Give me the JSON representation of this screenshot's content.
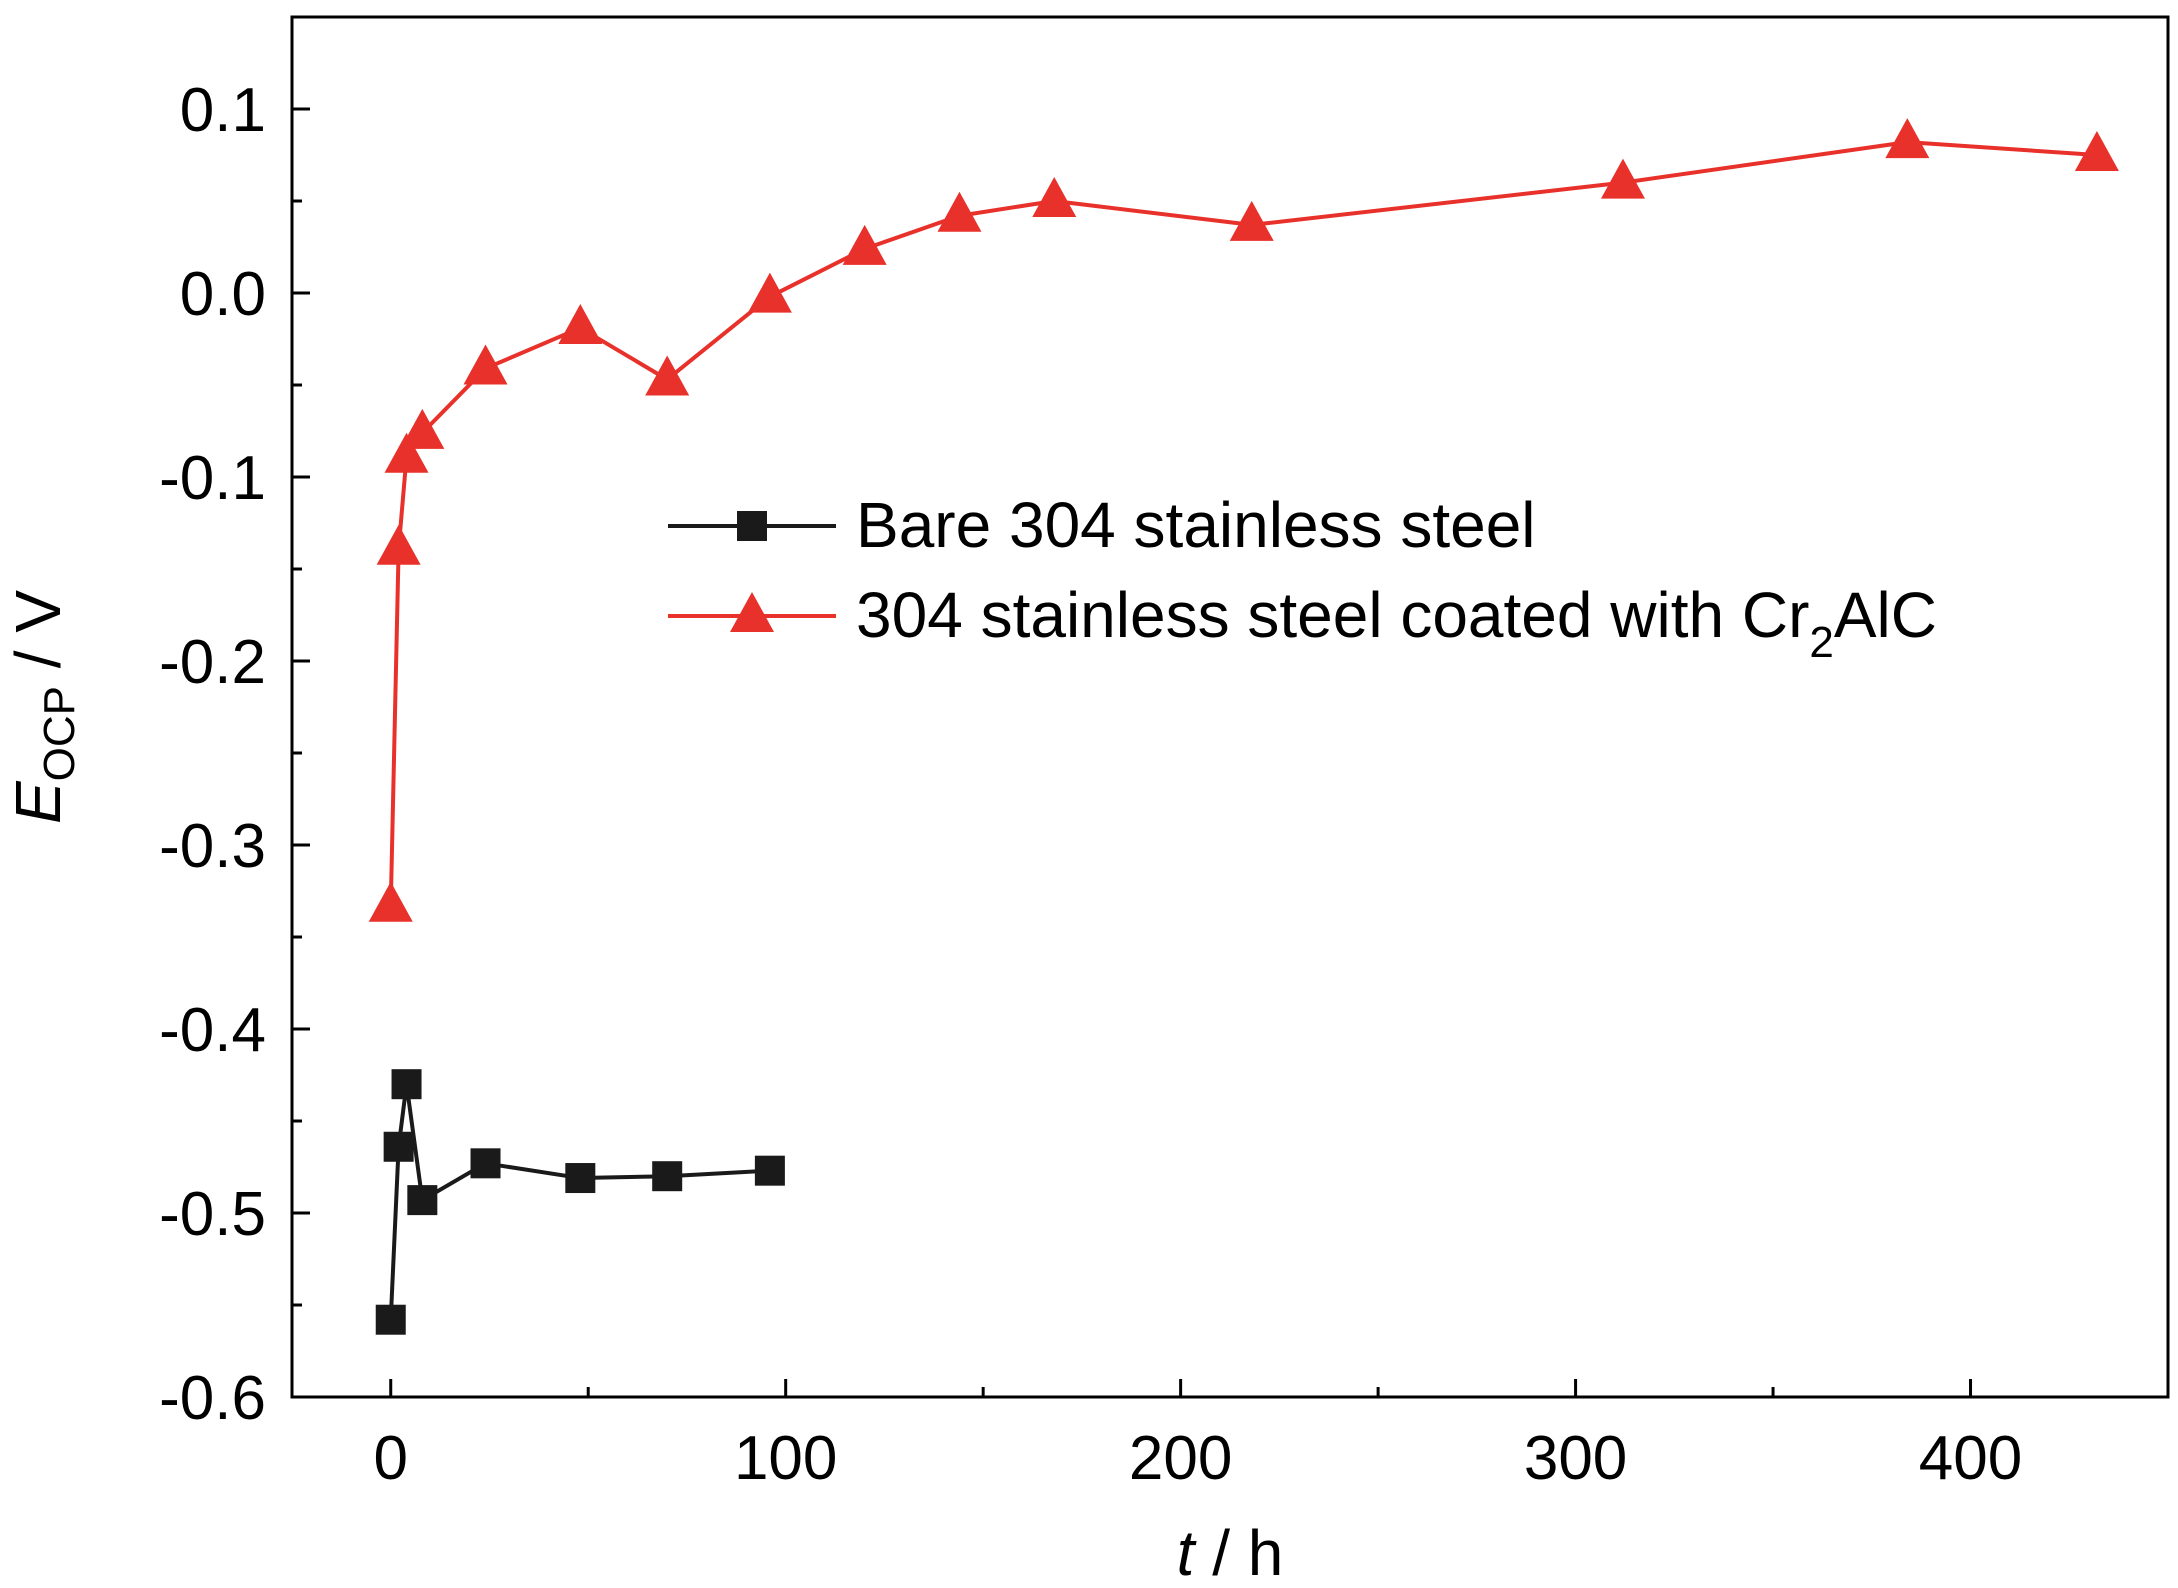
{
  "chart_data": {
    "type": "line",
    "xlabel": {
      "var": "t",
      "unit": " / h"
    },
    "ylabel": {
      "var": "E",
      "sub": "OCP",
      "unit": " / V"
    },
    "xlim": [
      -25,
      450
    ],
    "ylim": [
      -0.6,
      0.15
    ],
    "x_ticks": [
      0,
      100,
      200,
      300,
      400
    ],
    "x_tick_labels": [
      "0",
      "100",
      "200",
      "300",
      "400"
    ],
    "x_minor_ticks": [
      50,
      150,
      250,
      350
    ],
    "y_ticks": [
      -0.6,
      -0.5,
      -0.4,
      -0.3,
      -0.2,
      -0.1,
      0.0,
      0.1
    ],
    "y_tick_labels": [
      "-0.6",
      "-0.5",
      "-0.4",
      "-0.3",
      "-0.2",
      "-0.1",
      "0.0",
      "0.1"
    ],
    "y_minor_ticks": [
      -0.55,
      -0.45,
      -0.35,
      -0.25,
      -0.15,
      -0.05,
      0.05
    ],
    "grid": false,
    "legend_position": "center-right",
    "series": [
      {
        "name": "Bare 304 stainless steel",
        "name_parts": {
          "text": "Bare 304 stainless steel"
        },
        "color": "#1a1a1a",
        "marker": "square",
        "x": [
          0,
          2,
          4,
          8,
          24,
          48,
          70,
          96
        ],
        "y": [
          -0.558,
          -0.464,
          -0.43,
          -0.493,
          -0.473,
          -0.481,
          -0.48,
          -0.477
        ]
      },
      {
        "name": "304 stainless steel coated with Cr2AlC",
        "name_parts": {
          "pre": "304 stainless steel coated with Cr",
          "sub": "2",
          "post": "AlC"
        },
        "color": "#e8312a",
        "marker": "triangle",
        "x": [
          0,
          2,
          4,
          8,
          24,
          48,
          70,
          96,
          120,
          144,
          168,
          218,
          312,
          384,
          432
        ],
        "y": [
          -0.333,
          -0.139,
          -0.089,
          -0.076,
          -0.041,
          -0.019,
          -0.047,
          -0.002,
          0.024,
          0.042,
          0.05,
          0.037,
          0.06,
          0.082,
          0.075
        ]
      }
    ]
  }
}
